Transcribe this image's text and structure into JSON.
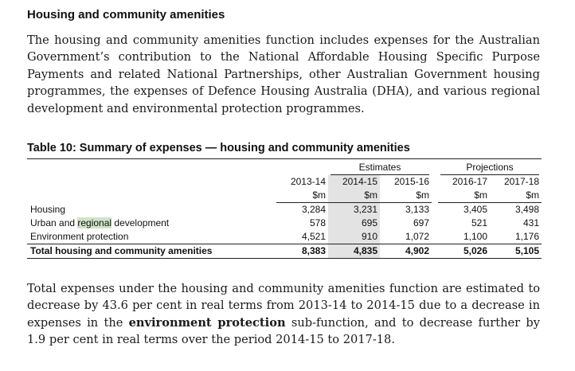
{
  "section": {
    "heading": "Housing and community amenities",
    "intro": "The housing and community amenities function includes expenses for the Australian Government’s contribution to the National Affordable Housing Specific Purpose Payments and related National Partnerships, other Australian Government housing programmes, the expenses of Defence Housing Australia (DHA), and various regional development and environmental protection programmes."
  },
  "table": {
    "title": "Table 10: Summary of expenses — housing and community amenities",
    "group_estimates": "Estimates",
    "group_projections": "Projections",
    "years": [
      "2013-14",
      "2014-15",
      "2015-16",
      "2016-17",
      "2017-18"
    ],
    "unit": "$m",
    "highlight_color": "#cfe3c8",
    "rows": [
      {
        "label_pre": "Housing",
        "label_hl": "",
        "label_post": "",
        "values": [
          "3,284",
          "3,231",
          "3,133",
          "3,405",
          "3,498"
        ]
      },
      {
        "label_pre": "Urban and ",
        "label_hl": "regional",
        "label_post": " development",
        "values": [
          "578",
          "695",
          "697",
          "521",
          "431"
        ]
      },
      {
        "label_pre": "Environment protection",
        "label_hl": "",
        "label_post": "",
        "values": [
          "4,521",
          "910",
          "1,072",
          "1,100",
          "1,176"
        ]
      }
    ],
    "total": {
      "label": "Total housing and community amenities",
      "values": [
        "8,383",
        "4,835",
        "4,902",
        "5,026",
        "5,105"
      ]
    }
  },
  "closing": {
    "part1": "Total expenses under the housing and community amenities function are estimated to decrease by 43.6 per cent in real terms from 2013-14 to 2014-15 due to a decrease in expenses in the ",
    "bold": "environment protection",
    "part2": " sub-function, and to decrease further by 1.9 per cent in real terms over the period 2014-15 to 2017-18."
  }
}
